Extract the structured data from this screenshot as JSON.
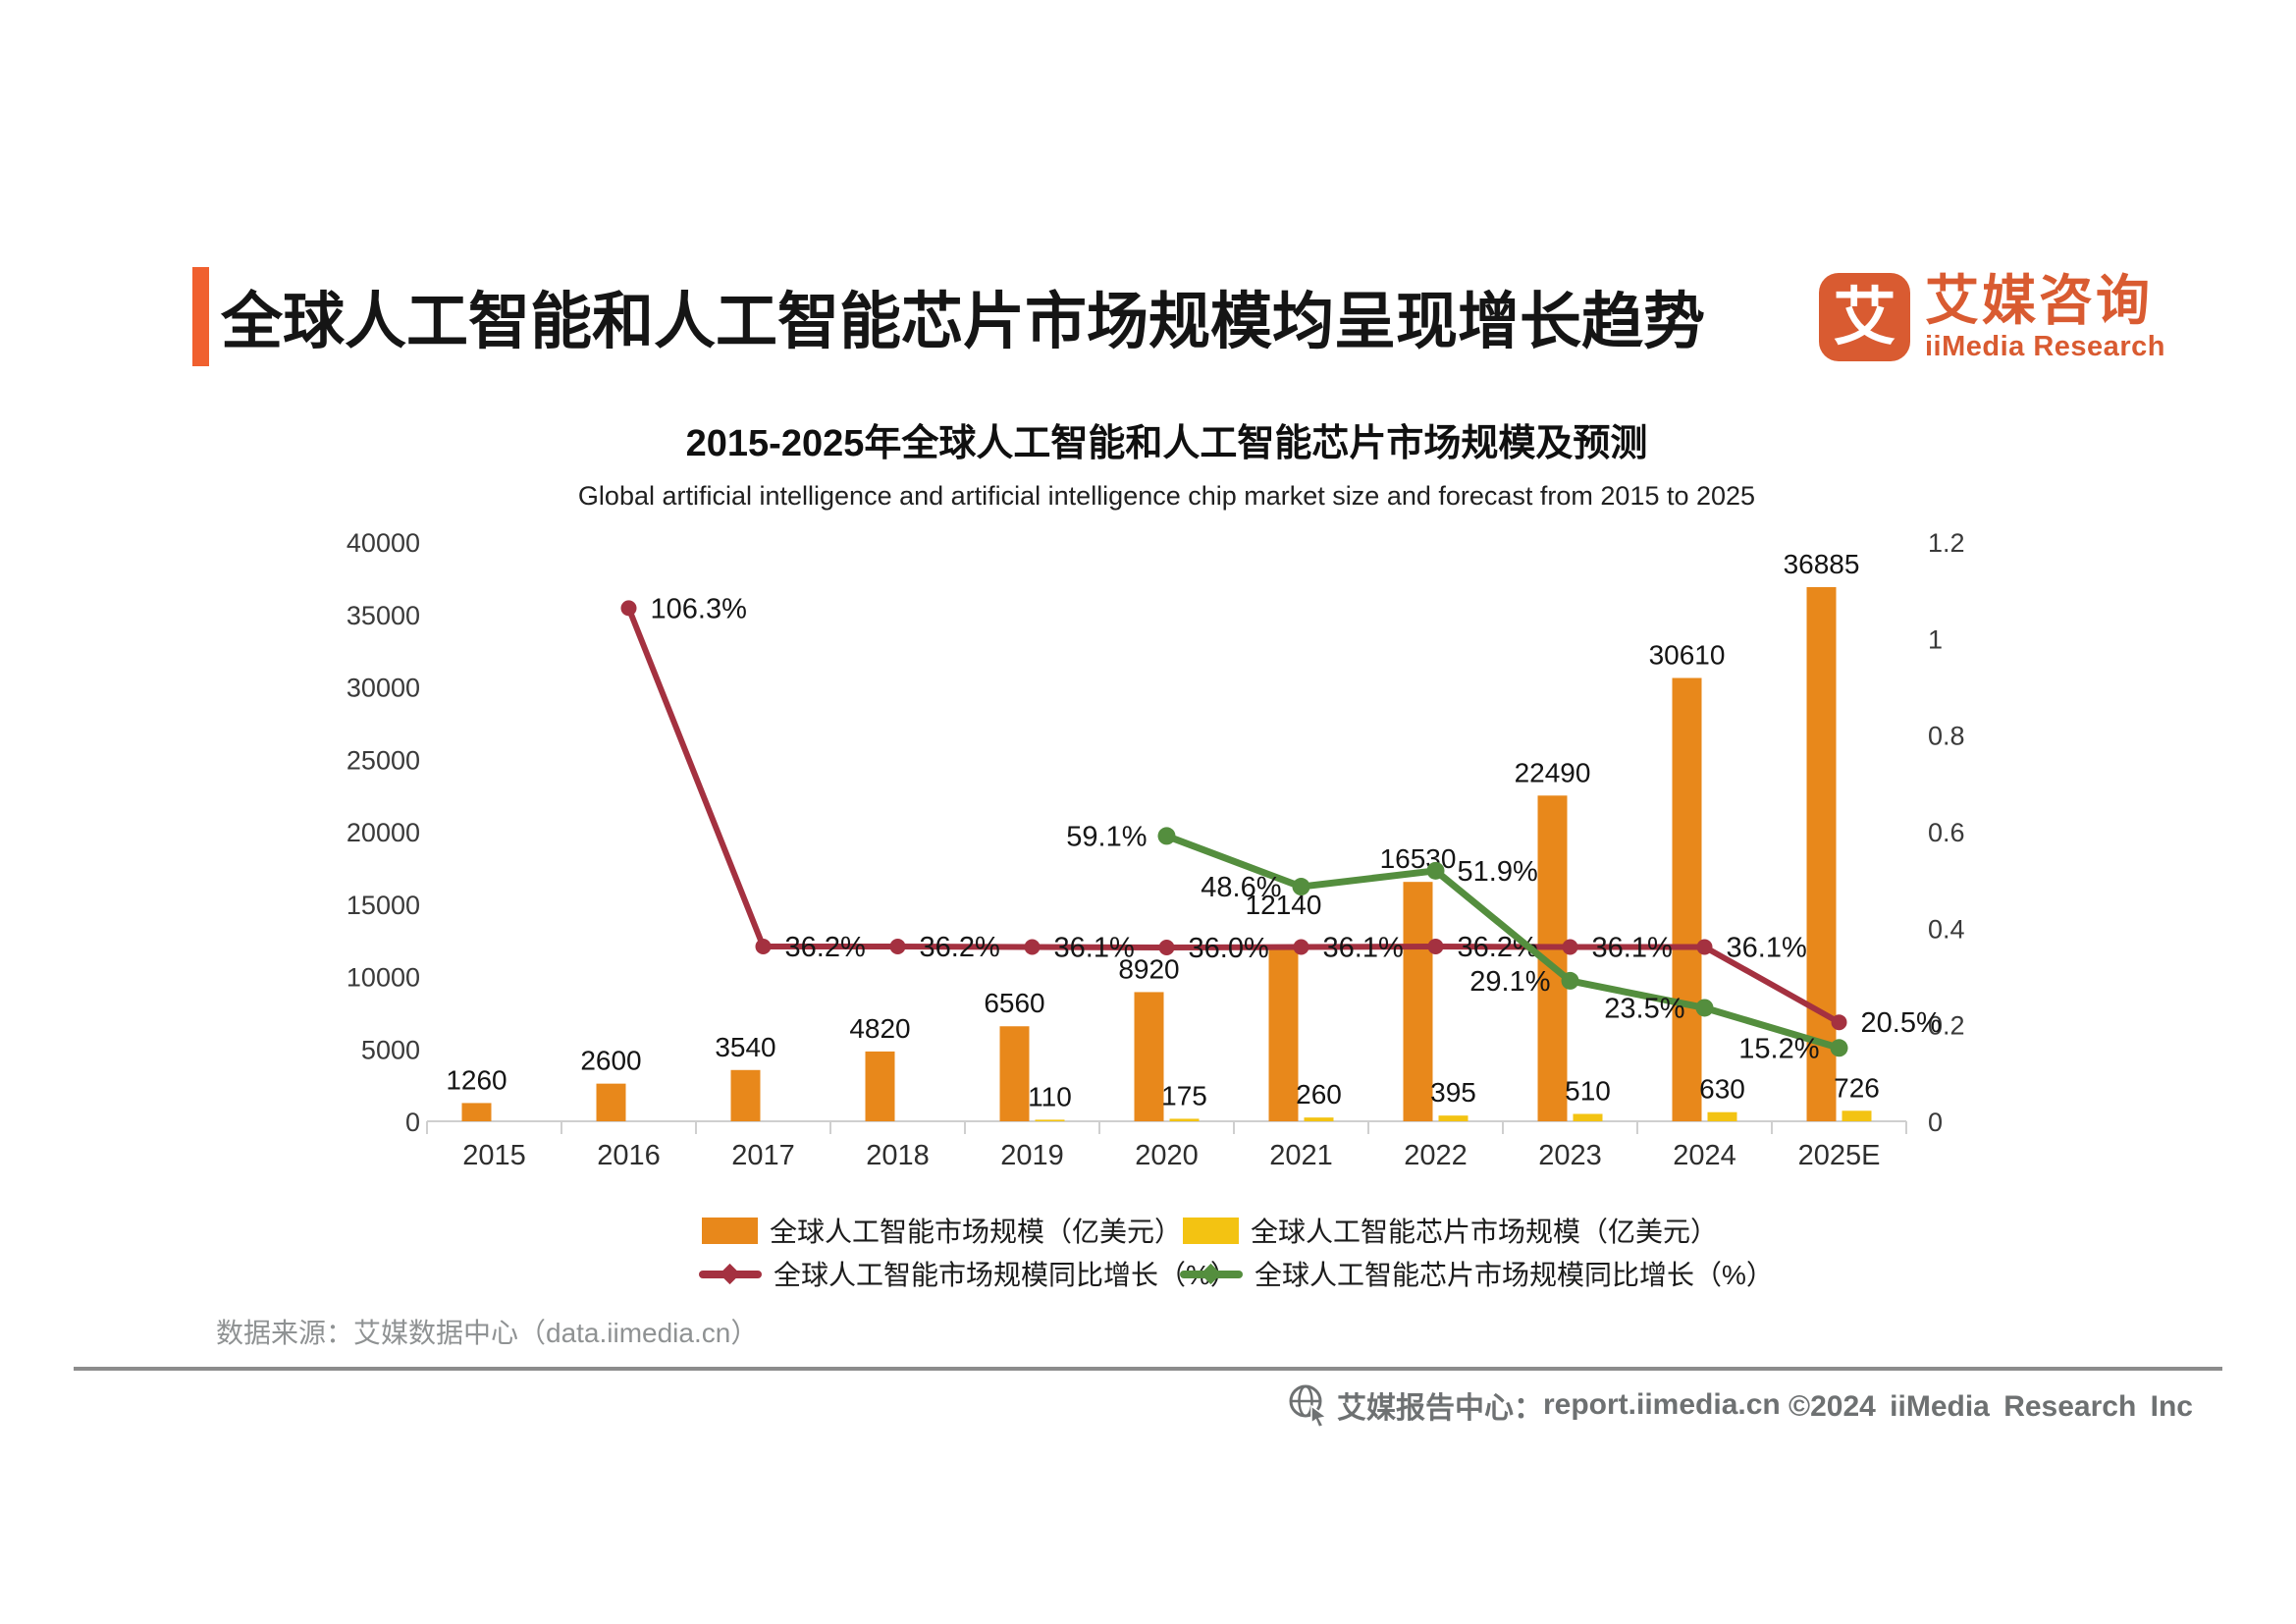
{
  "header": {
    "title": "全球人工智能和人工智能芯片市场规模均呈现增长趋势",
    "accent_color": "#F0602F",
    "logo": {
      "mark": "艾",
      "name_cn": "艾媒咨询",
      "name_en": "iiMedia Research",
      "color": "#D95B31"
    }
  },
  "chart": {
    "title_cn": "2015-2025年全球人工智能和人工智能芯片市场规模及预测",
    "title_en": "Global artificial intelligence and artificial intelligence chip market size and forecast from 2015 to 2025"
  },
  "chart_data": {
    "type": "combo",
    "categories": [
      "2015",
      "2016",
      "2017",
      "2018",
      "2019",
      "2020",
      "2021",
      "2022",
      "2023",
      "2024",
      "2025E"
    ],
    "series": [
      {
        "name": "全球人工智能市场规模（亿美元）",
        "type": "bar",
        "axis": "left",
        "color": "#E8881B",
        "values": [
          1260,
          2600,
          3540,
          4820,
          6560,
          8920,
          12140,
          16530,
          22490,
          30610,
          36885
        ]
      },
      {
        "name": "全球人工智能芯片市场规模（亿美元）",
        "type": "bar",
        "axis": "left",
        "color": "#F3C312",
        "values": [
          null,
          null,
          null,
          null,
          110,
          175,
          260,
          395,
          510,
          630,
          726
        ]
      },
      {
        "name": "全球人工智能市场规模同比增长（%）",
        "type": "line",
        "axis": "right",
        "color": "#A43140",
        "values_pct": [
          null,
          106.3,
          36.2,
          36.2,
          36.1,
          36.0,
          36.1,
          36.2,
          36.1,
          36.1,
          20.5
        ]
      },
      {
        "name": "全球人工智能芯片市场规模同比增长（%）",
        "type": "line",
        "axis": "right",
        "color": "#548E3E",
        "values_pct": [
          null,
          null,
          null,
          null,
          null,
          59.1,
          48.6,
          51.9,
          29.1,
          23.5,
          15.2
        ]
      }
    ],
    "left_axis": {
      "min": 0,
      "max": 40000,
      "step": 5000,
      "tick_labels": [
        "0",
        "5000",
        "10000",
        "15000",
        "20000",
        "25000",
        "30000",
        "35000",
        "40000"
      ]
    },
    "right_axis": {
      "min": 0,
      "max": 1.2,
      "step": 0.2,
      "tick_labels": [
        "0",
        "0.2",
        "0.4",
        "0.6",
        "0.8",
        "1",
        "1.2"
      ]
    },
    "grid": false,
    "legend_position": "bottom"
  },
  "legend": {
    "items": [
      {
        "label": "全球人工智能市场规模（亿美元）",
        "swatch": "bar",
        "color": "#E8881B"
      },
      {
        "label": "全球人工智能芯片市场规模（亿美元）",
        "swatch": "bar",
        "color": "#F3C312"
      },
      {
        "label": "全球人工智能市场规模同比增长（%）",
        "swatch": "line",
        "color": "#A43140"
      },
      {
        "label": "全球人工智能芯片市场规模同比增长（%）",
        "swatch": "line",
        "color": "#548E3E"
      }
    ]
  },
  "source": {
    "text": "数据来源：艾媒数据中心（data.iimedia.cn）"
  },
  "footer": {
    "report_label": "艾媒报告中心：",
    "report_url": "report.iimedia.cn",
    "copyright": "©2024 iiMedia Research Inc"
  }
}
